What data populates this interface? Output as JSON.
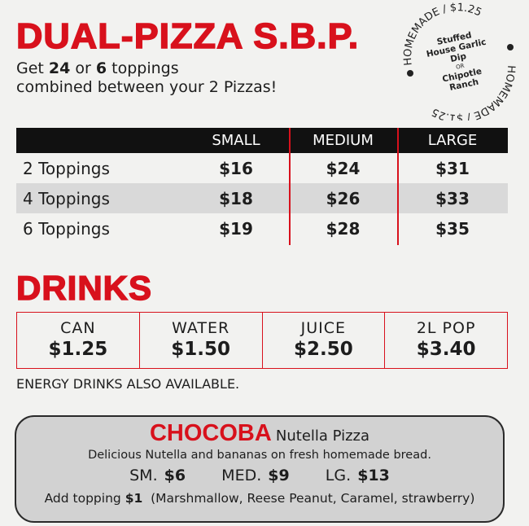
{
  "header": {
    "title": "DUAL-PIZZA S.B.P.",
    "subtitle_line1_pre": "Get ",
    "n1": "2",
    ", ": ", ",
    "n2": "4",
    "or": " or ",
    "n3": "6",
    "subtitle_line1_post": " toppings",
    "subtitle_line2": "combined between your 2 Pizzas!"
  },
  "badge": {
    "top_arc": "HOMEMADE / $1.25",
    "bottom_arc": "HOMEMADE / $1.25",
    "line1": "Stuffed",
    "line2": "House Garlic",
    "line3": "Dip",
    "or": "OR",
    "line4": "Chipotle",
    "line5": "Ranch"
  },
  "pizza_table": {
    "columns": [
      "",
      "SMALL",
      "MEDIUM",
      "LARGE"
    ],
    "rows": [
      [
        "2 Toppings",
        "$16",
        "$24",
        "$31"
      ],
      [
        "4 Toppings",
        "$18",
        "$26",
        "$33"
      ],
      [
        "6 Toppings",
        "$19",
        "$28",
        "$35"
      ]
    ]
  },
  "drinks": {
    "title": "DRINKS",
    "items": [
      {
        "name": "CAN",
        "price": "$1.25"
      },
      {
        "name": "WATER",
        "price": "$1.50"
      },
      {
        "name": "JUICE",
        "price": "$2.50"
      },
      {
        "name": "2L POP",
        "price": "$3.40"
      }
    ],
    "note": "ENERGY DRINKS ALSO AVAILABLE."
  },
  "chocoba": {
    "name": "CHOCOBA",
    "subtitle": "Nutella Pizza",
    "description": "Delicious Nutella and bananas on fresh homemade bread.",
    "sizes": [
      {
        "label": "SM.",
        "price": "$6"
      },
      {
        "label": "MED.",
        "price": "$9"
      },
      {
        "label": "LG.",
        "price": "$13"
      }
    ],
    "add_label": "Add topping",
    "add_price": "$1",
    "add_options": "(Marshmallow, Reese Peanut, Caramel, strawberry)"
  },
  "colors": {
    "accent": "#d8111c",
    "header_bg": "#111111",
    "alt_row": "#d9d9d9",
    "box_bg": "#d2d2d2"
  }
}
